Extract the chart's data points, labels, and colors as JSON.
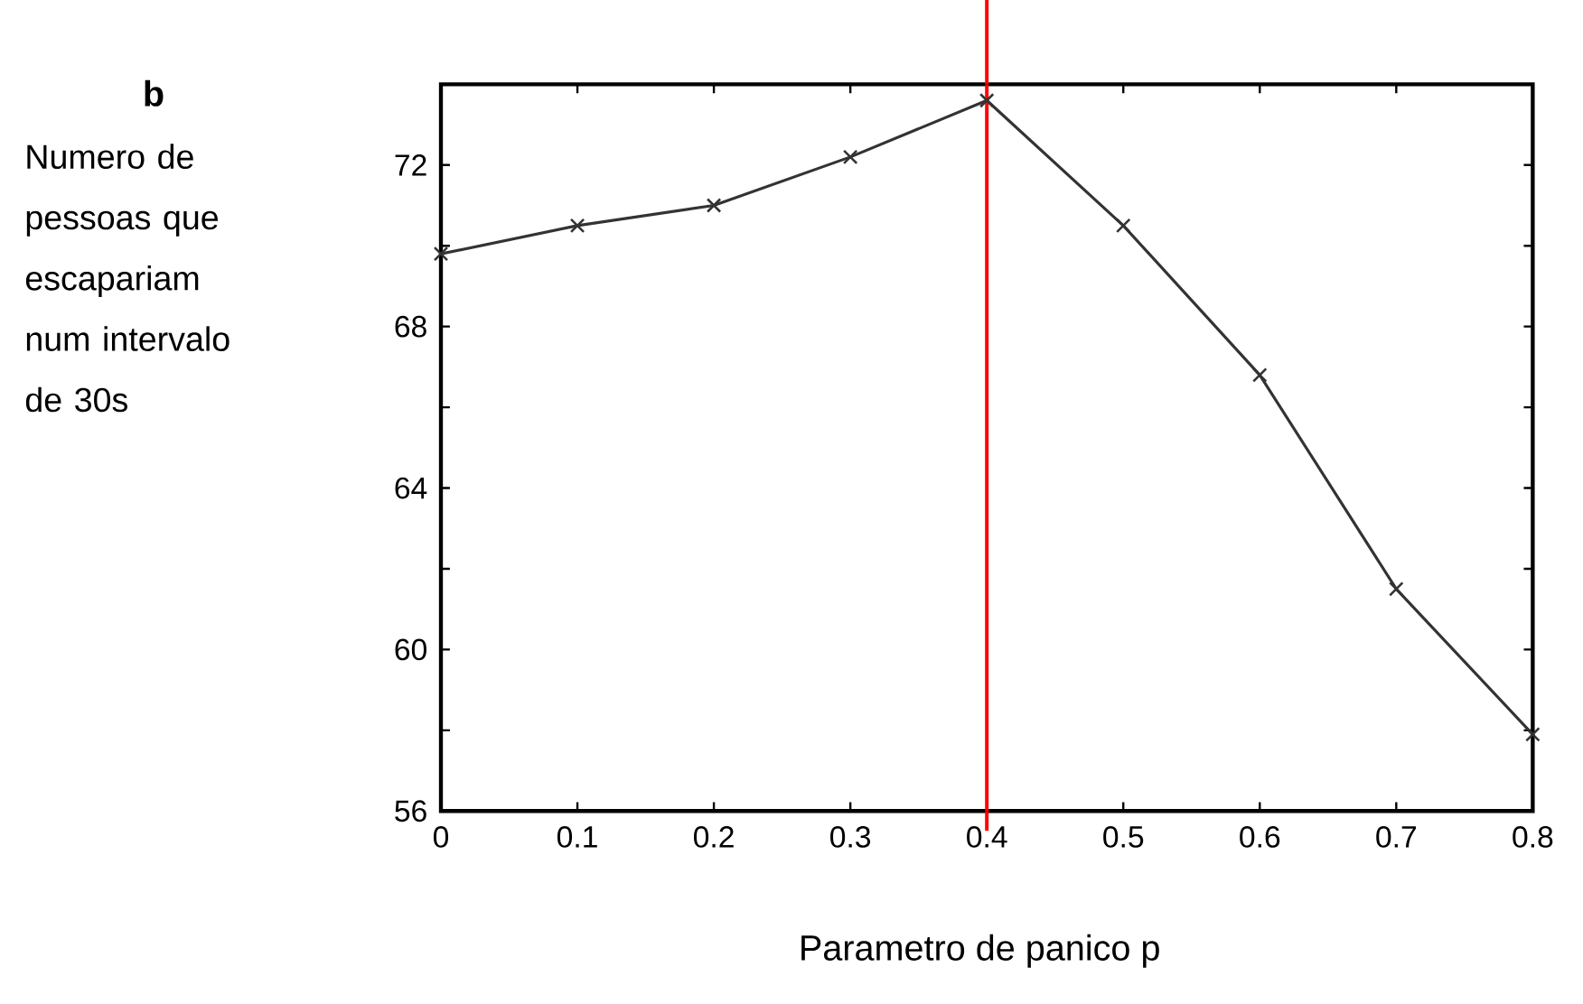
{
  "chart_data": {
    "type": "line",
    "xlabel": "Parametro de panico p",
    "ylabel": "Numero de pessoas que escapariam num intervalo de 30s",
    "annotations": [
      "b"
    ],
    "x": [
      0,
      0.1,
      0.2,
      0.3,
      0.4,
      0.5,
      0.6,
      0.7,
      0.8
    ],
    "series": [
      {
        "color": "#333333",
        "values": [
          69.8,
          70.5,
          71.0,
          72.2,
          73.6,
          70.5,
          66.8,
          61.5,
          57.9
        ]
      }
    ],
    "marker": "cross",
    "line_style": "solid",
    "grid": false,
    "xlim": [
      0,
      0.8
    ],
    "ylim": [
      56,
      74
    ],
    "xticks": [
      0,
      0.1,
      0.2,
      0.3,
      0.4,
      0.5,
      0.6,
      0.7,
      0.8
    ],
    "yticks": [
      56,
      {
        "value": 58,
        "label": null
      },
      60,
      {
        "value": 62,
        "label": null
      },
      64,
      {
        "value": 66,
        "label": null
      },
      68,
      {
        "value": 70,
        "label": null
      },
      72
    ],
    "ref_lines": [
      {
        "axis": "x",
        "value": 0.4,
        "color": "#ff0000"
      }
    ]
  }
}
